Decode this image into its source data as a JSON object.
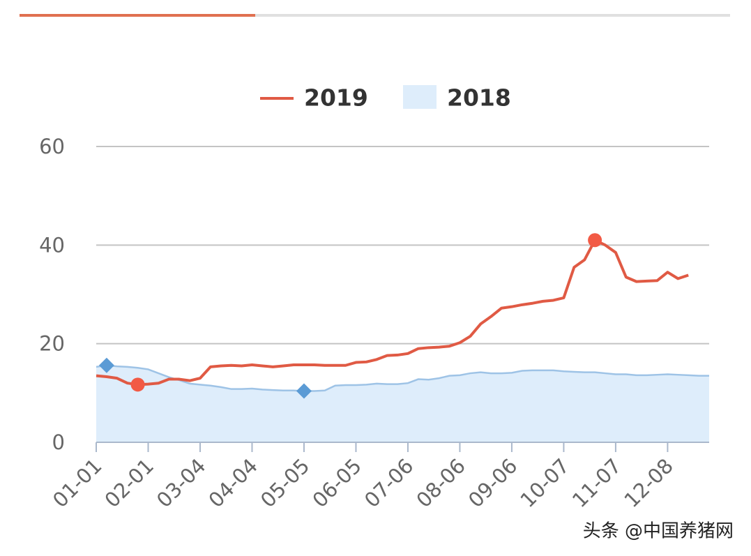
{
  "chart_data": {
    "type": "line",
    "categories": [
      "01-01",
      null,
      null,
      null,
      null,
      "02-01",
      null,
      null,
      null,
      null,
      "03-04",
      null,
      null,
      null,
      null,
      "04-04",
      null,
      null,
      null,
      null,
      "05-05",
      null,
      null,
      null,
      null,
      "06-05",
      null,
      null,
      null,
      null,
      "07-06",
      null,
      null,
      null,
      null,
      "08-06",
      null,
      null,
      null,
      null,
      "09-06",
      null,
      null,
      null,
      null,
      "10-07",
      null,
      null,
      null,
      null,
      "11-07",
      null,
      null,
      null,
      null,
      "12-08",
      null,
      null,
      null,
      null
    ],
    "series": [
      {
        "name": "2019",
        "color": "#e05a44",
        "style": "line",
        "marker": "circle",
        "values": [
          13.5,
          13.3,
          13.0,
          12.0,
          11.7,
          11.8,
          12.0,
          12.8,
          12.8,
          12.5,
          13.0,
          15.3,
          15.5,
          15.6,
          15.5,
          15.7,
          15.5,
          15.3,
          15.5,
          15.7,
          15.7,
          15.7,
          15.6,
          15.6,
          15.6,
          16.2,
          16.3,
          16.8,
          17.6,
          17.7,
          18.0,
          19.0,
          19.2,
          19.3,
          19.5,
          20.2,
          21.5,
          24.0,
          25.5,
          27.2,
          27.5,
          27.9,
          28.2,
          28.6,
          28.8,
          29.3,
          35.5,
          37.0,
          41.0,
          40.0,
          38.5,
          33.5,
          32.6,
          32.7,
          32.8,
          34.5,
          33.2,
          33.9,
          null,
          null
        ]
      },
      {
        "name": "2018",
        "color": "#5b9bd5",
        "style": "area",
        "marker": "diamond",
        "values": [
          15.3,
          15.6,
          15.4,
          15.3,
          15.1,
          14.8,
          14.0,
          13.2,
          12.6,
          11.9,
          11.7,
          11.5,
          11.2,
          10.8,
          10.8,
          10.9,
          10.7,
          10.6,
          10.5,
          10.5,
          10.4,
          10.4,
          10.5,
          11.5,
          11.6,
          11.6,
          11.7,
          11.9,
          11.8,
          11.8,
          12.0,
          12.8,
          12.7,
          13.0,
          13.5,
          13.6,
          14.0,
          14.2,
          14.0,
          14.0,
          14.1,
          14.5,
          14.6,
          14.6,
          14.6,
          14.4,
          14.3,
          14.2,
          14.2,
          14.0,
          13.8,
          13.8,
          13.6,
          13.6,
          13.7,
          13.8,
          13.7,
          13.6,
          13.5,
          13.5
        ]
      }
    ],
    "ylim": [
      0,
      60
    ],
    "yticks": [
      0,
      20,
      40,
      60
    ],
    "grid": true,
    "legend": "top",
    "watermark": "头条 @中国养猪网"
  }
}
